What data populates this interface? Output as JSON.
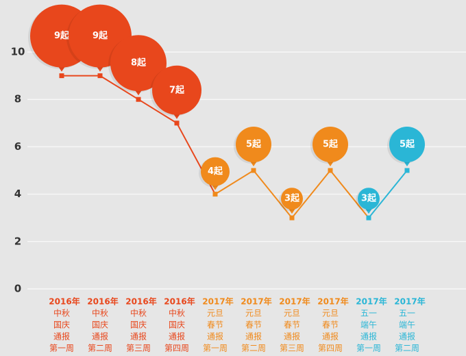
{
  "chart_data": {
    "type": "line",
    "categories": [
      [
        "2016年",
        "中秋",
        "国庆",
        "通报",
        "第一周"
      ],
      [
        "2016年",
        "中秋",
        "国庆",
        "通报",
        "第二周"
      ],
      [
        "2016年",
        "中秋",
        "国庆",
        "通报",
        "第三周"
      ],
      [
        "2016年",
        "中秋",
        "国庆",
        "通报",
        "第四周"
      ],
      [
        "2017年",
        "元旦",
        "春节",
        "通报",
        "第一周"
      ],
      [
        "2017年",
        "元旦",
        "春节",
        "通报",
        "第二周"
      ],
      [
        "2017年",
        "元旦",
        "春节",
        "通报",
        "第三周"
      ],
      [
        "2017年",
        "元旦",
        "春节",
        "通报",
        "第四周"
      ],
      [
        "2017年",
        "五一",
        "端午",
        "通报",
        "第一周"
      ],
      [
        "2017年",
        "五一",
        "端午",
        "通报",
        "第二周"
      ]
    ],
    "values": [
      9,
      9,
      8,
      7,
      4,
      5,
      3,
      5,
      3,
      5
    ],
    "value_labels": [
      "9起",
      "9起",
      "8起",
      "7起",
      "4起",
      "5起",
      "3起",
      "5起",
      "3起",
      "5起"
    ],
    "colors": [
      "#e8471c",
      "#e8471c",
      "#e8471c",
      "#e8471c",
      "#f08a1c",
      "#f08a1c",
      "#f08a1c",
      "#f08a1c",
      "#2ab6d6",
      "#2ab6d6"
    ],
    "ylim": [
      0,
      10
    ],
    "yticks": [
      0,
      2,
      4,
      6,
      8,
      10
    ],
    "grid": true
  }
}
